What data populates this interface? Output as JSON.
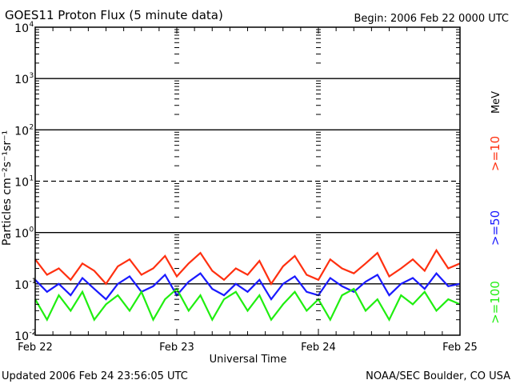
{
  "chart_data": {
    "type": "line",
    "title": "GOES11 Proton Flux (5 minute data)",
    "begin_label": "Begin: 2006 Feb 22 0000 UTC",
    "xlabel": "Universal Time",
    "ylabel": "Particles cm⁻²s⁻¹sr⁻¹",
    "yscale": "log",
    "ylim": [
      0.01,
      10000
    ],
    "ytick_labels": [
      {
        "base": "10",
        "exp": "-2",
        "value": 0.01
      },
      {
        "base": "10",
        "exp": "-1",
        "value": 0.1
      },
      {
        "base": "10",
        "exp": "0",
        "value": 1
      },
      {
        "base": "10",
        "exp": "1",
        "value": 10
      },
      {
        "base": "10",
        "exp": "2",
        "value": 100
      },
      {
        "base": "10",
        "exp": "3",
        "value": 1000
      },
      {
        "base": "10",
        "exp": "4",
        "value": 10000
      }
    ],
    "xlim_hours": [
      0,
      72
    ],
    "xtick_labels": [
      {
        "label": "Feb 22",
        "hour": 0
      },
      {
        "label": "Feb 23",
        "hour": 24
      },
      {
        "label": "Feb 24",
        "hour": 48
      },
      {
        "label": "Feb 25",
        "hour": 72
      }
    ],
    "x_step_hours": 2,
    "series": [
      {
        "name": ">=10",
        "color": "#ff3010",
        "values": [
          0.3,
          0.15,
          0.2,
          0.12,
          0.25,
          0.18,
          0.1,
          0.22,
          0.3,
          0.15,
          0.2,
          0.35,
          0.14,
          0.25,
          0.4,
          0.18,
          0.12,
          0.2,
          0.15,
          0.28,
          0.1,
          0.22,
          0.35,
          0.15,
          0.12,
          0.3,
          0.2,
          0.16,
          0.25,
          0.4,
          0.14,
          0.2,
          0.3,
          0.18,
          0.45,
          0.2,
          0.25
        ]
      },
      {
        "name": ">=50",
        "color": "#1a1aff",
        "values": [
          0.12,
          0.07,
          0.1,
          0.06,
          0.13,
          0.08,
          0.05,
          0.1,
          0.14,
          0.07,
          0.09,
          0.15,
          0.06,
          0.11,
          0.16,
          0.08,
          0.06,
          0.1,
          0.07,
          0.12,
          0.05,
          0.1,
          0.14,
          0.07,
          0.06,
          0.13,
          0.09,
          0.07,
          0.11,
          0.15,
          0.06,
          0.1,
          0.13,
          0.08,
          0.16,
          0.09,
          0.1
        ]
      },
      {
        "name": ">=100",
        "color": "#20ee10",
        "values": [
          0.05,
          0.02,
          0.06,
          0.03,
          0.07,
          0.02,
          0.04,
          0.06,
          0.03,
          0.07,
          0.02,
          0.05,
          0.08,
          0.03,
          0.06,
          0.02,
          0.05,
          0.07,
          0.03,
          0.06,
          0.02,
          0.04,
          0.07,
          0.03,
          0.05,
          0.02,
          0.06,
          0.08,
          0.03,
          0.05,
          0.02,
          0.06,
          0.04,
          0.07,
          0.03,
          0.05,
          0.04
        ]
      }
    ],
    "unit_label": "MeV",
    "dashed_gridlines": [
      10
    ],
    "solid_gridlines": [
      1000,
      100,
      1,
      0.1
    ]
  },
  "footer": {
    "updated": "Updated 2006 Feb 24 23:56:05 UTC",
    "credit": "NOAA/SEC Boulder, CO USA"
  }
}
